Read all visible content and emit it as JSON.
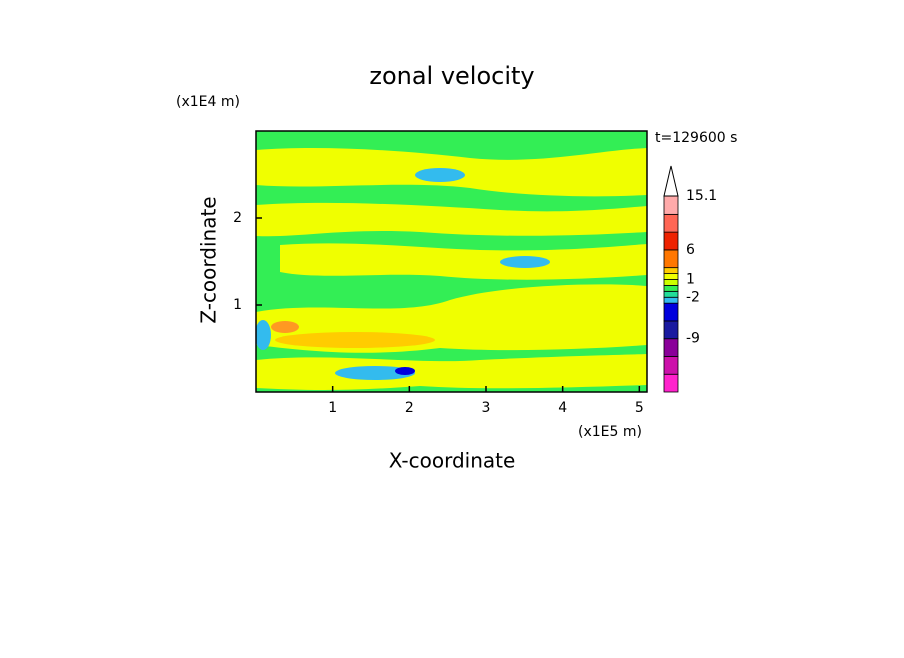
{
  "chart_data": {
    "type": "contour",
    "title": "zonal velocity",
    "x_label": "X-coordinate",
    "y_label": "Z-coordinate",
    "x_unit": "(x1E5 m)",
    "y_unit": "(x1E4 m)",
    "time_label": "t=129600 s",
    "xlim": [
      0,
      5.1
    ],
    "ylim": [
      0,
      3
    ],
    "xticks": [
      1,
      2,
      3,
      4,
      5
    ],
    "yticks": [
      1,
      2
    ],
    "colorbar": {
      "levels": [
        -18,
        -15,
        -12,
        -9,
        -6,
        -3,
        -2,
        -1,
        0,
        1,
        2,
        3,
        6,
        9,
        12,
        15.1
      ],
      "colors": [
        "#ff22cc",
        "#cc11aa",
        "#8a0099",
        "#1a1aa0",
        "#0000dd",
        "#33bbee",
        "#22dd99",
        "#33ee55",
        "#ccff00",
        "#f0ff00",
        "#ffcc00",
        "#ff7700",
        "#ee2200",
        "#ff6655",
        "#ffaaaa"
      ],
      "ticks": [
        15.1,
        6,
        1,
        -2,
        -9
      ]
    }
  }
}
